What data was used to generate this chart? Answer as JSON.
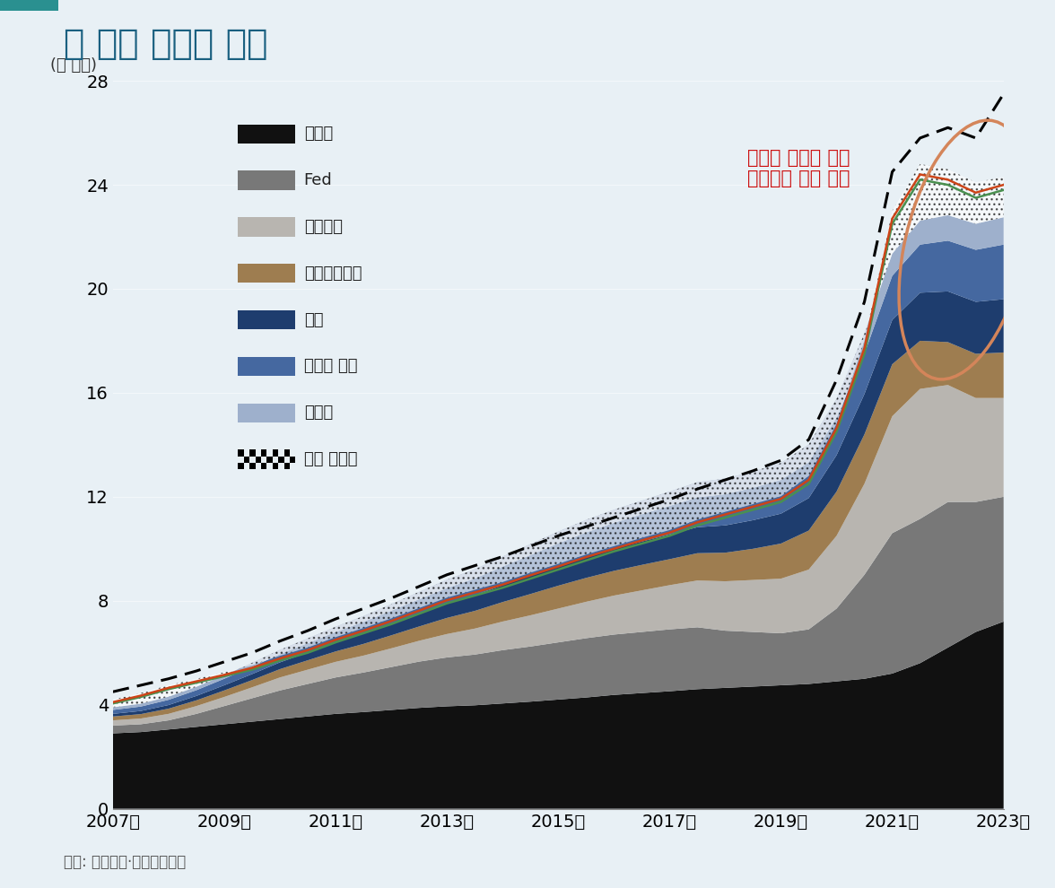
{
  "title": "미 국채 소유자 변화",
  "ylabel": "(조 달러)",
  "source": "자료: 블룸버그·다올투자증권",
  "annotation_line1": "패시브 투자자 감소",
  "annotation_line2": "헤지펀드 비중 증가",
  "bg_color": "#e8f0f5",
  "years": [
    2007,
    2007.5,
    2008,
    2008.5,
    2009,
    2009.5,
    2010,
    2010.5,
    2011,
    2011.5,
    2012,
    2012.5,
    2013,
    2013.5,
    2014,
    2014.5,
    2015,
    2015.5,
    2016,
    2016.5,
    2017,
    2017.5,
    2018,
    2018.5,
    2019,
    2019.5,
    2020,
    2020.5,
    2021,
    2021.5,
    2022,
    2022.5,
    2023
  ],
  "series_외국인": [
    2.9,
    2.95,
    3.05,
    3.15,
    3.25,
    3.35,
    3.45,
    3.55,
    3.65,
    3.72,
    3.8,
    3.88,
    3.94,
    3.98,
    4.05,
    4.12,
    4.2,
    4.28,
    4.38,
    4.45,
    4.52,
    4.6,
    4.65,
    4.7,
    4.75,
    4.8,
    4.9,
    5.0,
    5.2,
    5.6,
    6.2,
    6.8,
    7.2
  ],
  "series_Fed": [
    0.3,
    0.3,
    0.35,
    0.5,
    0.7,
    0.9,
    1.1,
    1.25,
    1.4,
    1.52,
    1.65,
    1.78,
    1.88,
    1.95,
    2.05,
    2.12,
    2.2,
    2.28,
    2.32,
    2.35,
    2.38,
    2.38,
    2.2,
    2.1,
    2.0,
    2.1,
    2.8,
    4.0,
    5.4,
    5.55,
    5.6,
    5.0,
    4.8
  ],
  "series_시중은행": [
    0.2,
    0.22,
    0.25,
    0.3,
    0.35,
    0.42,
    0.5,
    0.55,
    0.6,
    0.65,
    0.72,
    0.8,
    0.9,
    1.0,
    1.1,
    1.2,
    1.3,
    1.4,
    1.5,
    1.6,
    1.7,
    1.8,
    1.9,
    2.0,
    2.1,
    2.3,
    2.8,
    3.5,
    4.5,
    5.0,
    4.5,
    4.0,
    3.8
  ],
  "series_머니마켓펀드": [
    0.15,
    0.17,
    0.2,
    0.22,
    0.25,
    0.28,
    0.32,
    0.36,
    0.4,
    0.45,
    0.5,
    0.55,
    0.62,
    0.68,
    0.75,
    0.82,
    0.88,
    0.92,
    0.95,
    0.98,
    1.0,
    1.05,
    1.1,
    1.2,
    1.35,
    1.5,
    1.7,
    1.9,
    2.0,
    1.85,
    1.65,
    1.7,
    1.75
  ],
  "series_가계": [
    0.1,
    0.12,
    0.14,
    0.17,
    0.2,
    0.23,
    0.26,
    0.3,
    0.35,
    0.4,
    0.45,
    0.5,
    0.55,
    0.6,
    0.65,
    0.7,
    0.75,
    0.8,
    0.85,
    0.9,
    0.95,
    1.0,
    1.05,
    1.1,
    1.15,
    1.25,
    1.4,
    1.55,
    1.7,
    1.85,
    1.95,
    2.0,
    2.05
  ],
  "series_뮤추얼펀드": [
    0.15,
    0.17,
    0.2,
    0.22,
    0.25,
    0.28,
    0.32,
    0.36,
    0.4,
    0.45,
    0.5,
    0.55,
    0.6,
    0.65,
    0.72,
    0.8,
    0.88,
    0.95,
    1.0,
    1.05,
    1.1,
    1.15,
    1.2,
    1.25,
    1.3,
    1.38,
    1.45,
    1.55,
    1.7,
    1.85,
    1.95,
    2.0,
    2.1
  ],
  "series_주정부": [
    0.1,
    0.11,
    0.12,
    0.13,
    0.14,
    0.15,
    0.16,
    0.18,
    0.2,
    0.22,
    0.25,
    0.28,
    0.32,
    0.35,
    0.38,
    0.42,
    0.45,
    0.48,
    0.5,
    0.52,
    0.55,
    0.58,
    0.6,
    0.62,
    0.65,
    0.68,
    0.72,
    0.78,
    0.85,
    0.92,
    0.98,
    1.0,
    1.05
  ],
  "line_green": [
    4.05,
    4.3,
    4.6,
    4.85,
    5.1,
    5.35,
    5.7,
    6.0,
    6.4,
    6.75,
    7.1,
    7.5,
    7.9,
    8.2,
    8.5,
    8.85,
    9.2,
    9.55,
    9.9,
    10.2,
    10.5,
    10.9,
    11.2,
    11.5,
    11.8,
    12.5,
    14.5,
    17.5,
    22.5,
    24.2,
    24.0,
    23.5,
    23.8
  ],
  "line_orange": [
    4.1,
    4.35,
    4.65,
    4.9,
    5.15,
    5.42,
    5.78,
    6.1,
    6.5,
    6.85,
    7.22,
    7.62,
    8.02,
    8.32,
    8.62,
    8.98,
    9.32,
    9.68,
    10.0,
    10.32,
    10.62,
    11.02,
    11.32,
    11.62,
    11.92,
    12.65,
    14.65,
    17.72,
    22.7,
    24.4,
    24.2,
    23.7,
    24.0
  ],
  "line_checkered_top": [
    4.2,
    4.45,
    4.75,
    5.0,
    5.25,
    5.52,
    5.88,
    6.2,
    6.6,
    6.95,
    7.32,
    7.72,
    8.12,
    8.42,
    8.72,
    9.08,
    9.42,
    9.78,
    10.1,
    10.42,
    10.72,
    11.12,
    11.42,
    11.72,
    12.02,
    12.8,
    14.8,
    18.0,
    23.0,
    24.8,
    24.6,
    24.1,
    24.3
  ],
  "line_dashed": [
    4.5,
    4.75,
    5.0,
    5.3,
    5.65,
    6.0,
    6.45,
    6.85,
    7.3,
    7.7,
    8.1,
    8.55,
    9.0,
    9.35,
    9.7,
    10.1,
    10.5,
    10.85,
    11.2,
    11.55,
    11.9,
    12.3,
    12.65,
    13.0,
    13.4,
    14.2,
    16.5,
    19.5,
    24.5,
    25.8,
    26.2,
    25.8,
    27.5
  ],
  "colors": {
    "외국인": "#111111",
    "Fed": "#787878",
    "시중은행": "#b8b5b0",
    "머니마켓펀드": "#9e7d50",
    "가계": "#1e3d6e",
    "뮤추얼펀드": "#4568a0",
    "주정부": "#9eb0cc"
  },
  "ylim": [
    0,
    28
  ],
  "yticks": [
    0,
    4,
    8,
    12,
    16,
    20,
    24,
    28
  ],
  "xtick_positions": [
    2007,
    2009,
    2011,
    2013,
    2015,
    2017,
    2019,
    2021,
    2023
  ],
  "xtick_labels": [
    "2007년",
    "2009년",
    "2011년",
    "2013년",
    "2015년",
    "2017년",
    "2019년",
    "2021년",
    "2023년"
  ]
}
